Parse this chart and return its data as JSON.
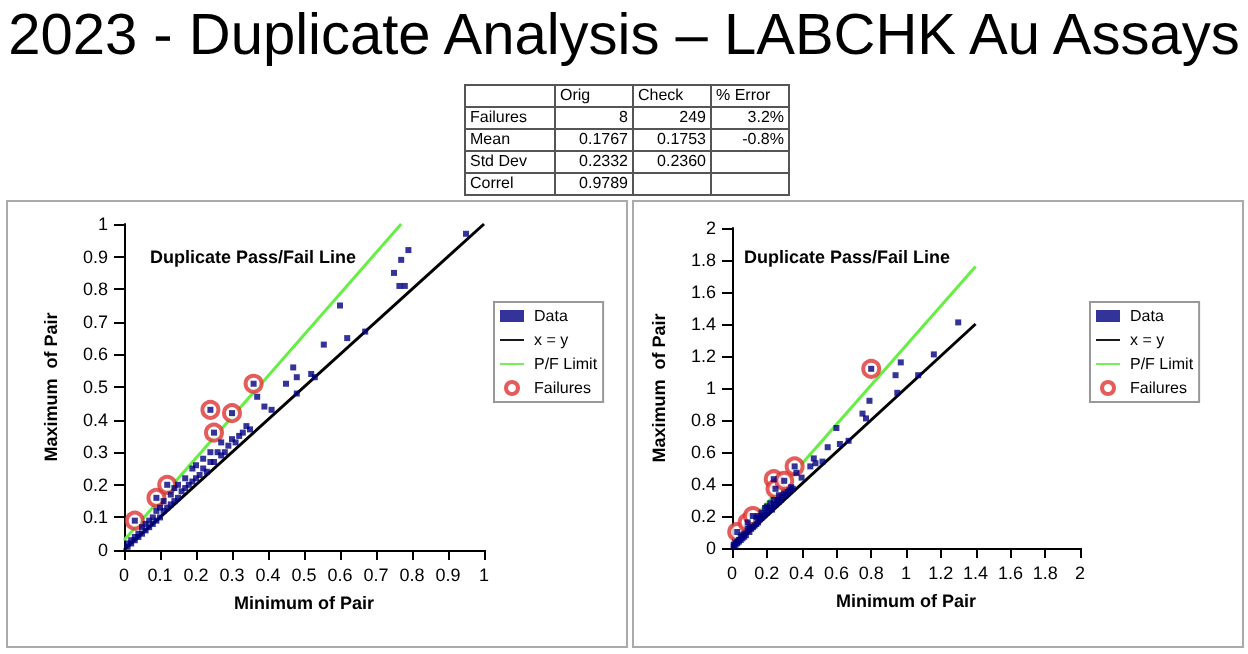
{
  "chart_data": [
    {
      "type": "other",
      "title": "2023 - Duplicate Analysis – LABCHK Au Assays",
      "annotations": [
        null,
        "Orig",
        "Check",
        "% Error",
        "Failures",
        "8",
        "249",
        "3.2%",
        "Mean",
        "0.1767",
        "0.1753",
        "-0.8%",
        "Std Dev",
        "0.2332",
        "0.2360",
        null,
        "Correl",
        "0.9789",
        null,
        null
      ]
    },
    {
      "type": "scatter",
      "title": "Duplicate Pass/Fail Line",
      "xlabel": "Minimum of Pair",
      "ylabel": "Maximum  of Pair",
      "xlim": [
        0,
        1
      ],
      "ylim": [
        0,
        1
      ],
      "xticks": [
        0,
        0.1,
        0.2,
        0.3,
        0.4,
        0.5,
        0.6,
        0.7,
        0.8,
        0.9,
        1
      ],
      "yticks": [
        0,
        0.1,
        0.2,
        0.3,
        0.4,
        0.5,
        0.6,
        0.7,
        0.8,
        0.9,
        1
      ],
      "grid": false,
      "legend": "right",
      "series": [
        {
          "name": "Data",
          "type": "scatter",
          "marker": "square",
          "color": "#000080",
          "x": [
            0.01,
            0.01,
            0.02,
            0.02,
            0.03,
            0.03,
            0.04,
            0.04,
            0.05,
            0.05,
            0.06,
            0.06,
            0.07,
            0.07,
            0.08,
            0.08,
            0.09,
            0.09,
            0.1,
            0.1,
            0.11,
            0.11,
            0.12,
            0.13,
            0.13,
            0.14,
            0.14,
            0.15,
            0.15,
            0.16,
            0.17,
            0.17,
            0.18,
            0.19,
            0.19,
            0.2,
            0.2,
            0.21,
            0.22,
            0.22,
            0.23,
            0.24,
            0.24,
            0.25,
            0.26,
            0.27,
            0.27,
            0.28,
            0.29,
            0.3,
            0.31,
            0.32,
            0.33,
            0.34,
            0.35,
            0.37,
            0.39,
            0.41,
            0.45,
            0.47,
            0.48,
            0.48,
            0.52,
            0.53,
            0.555,
            0.6,
            0.62,
            0.67,
            0.75,
            0.765,
            0.78,
            0.77,
            0.79,
            0.95,
            0.03,
            0.09,
            0.12,
            0.24,
            0.25,
            0.3,
            0.36
          ],
          "values": [
            0.01,
            0.02,
            0.02,
            0.03,
            0.03,
            0.04,
            0.04,
            0.05,
            0.05,
            0.07,
            0.06,
            0.08,
            0.07,
            0.09,
            0.08,
            0.1,
            0.09,
            0.12,
            0.1,
            0.13,
            0.12,
            0.15,
            0.13,
            0.14,
            0.17,
            0.15,
            0.19,
            0.16,
            0.2,
            0.18,
            0.19,
            0.22,
            0.2,
            0.21,
            0.25,
            0.22,
            0.26,
            0.23,
            0.25,
            0.28,
            0.24,
            0.27,
            0.3,
            0.27,
            0.3,
            0.29,
            0.33,
            0.3,
            0.32,
            0.34,
            0.33,
            0.35,
            0.36,
            0.38,
            0.37,
            0.47,
            0.44,
            0.43,
            0.51,
            0.56,
            0.53,
            0.48,
            0.54,
            0.53,
            0.63,
            0.75,
            0.65,
            0.67,
            0.85,
            0.81,
            0.81,
            0.89,
            0.92,
            0.97,
            0.09,
            0.16,
            0.2,
            0.43,
            0.36,
            0.42,
            0.51
          ]
        },
        {
          "name": "x = y",
          "type": "line",
          "marker": "none",
          "color": "#000000",
          "x": [
            0,
            1
          ],
          "values": [
            0,
            1
          ]
        },
        {
          "name": "P/F Limit",
          "type": "line",
          "marker": "none",
          "color": "#66ee44",
          "x": [
            0,
            0.77
          ],
          "values": [
            0.03,
            1
          ]
        },
        {
          "name": "Failures",
          "type": "scatter",
          "marker": "circle",
          "color": "#dd3333",
          "x": [
            0.03,
            0.09,
            0.12,
            0.24,
            0.25,
            0.3,
            0.36
          ],
          "values": [
            0.09,
            0.16,
            0.2,
            0.43,
            0.36,
            0.42,
            0.51
          ]
        }
      ]
    },
    {
      "type": "scatter",
      "title": "Duplicate Pass/Fail Line",
      "xlabel": "Minimum of Pair",
      "ylabel": "Maximum  of Pair",
      "xlim": [
        0,
        2
      ],
      "ylim": [
        0,
        2
      ],
      "xticks": [
        0,
        0.2,
        0.4,
        0.6,
        0.8,
        1,
        1.2,
        1.4,
        1.6,
        1.8,
        2
      ],
      "yticks": [
        0,
        0.2,
        0.4,
        0.6,
        0.8,
        1,
        1.2,
        1.4,
        1.6,
        1.8,
        2
      ],
      "grid": false,
      "legend": "right",
      "series": [
        {
          "name": "Data",
          "type": "scatter",
          "marker": "square",
          "color": "#000080",
          "x": [
            0.01,
            0.01,
            0.02,
            0.02,
            0.03,
            0.03,
            0.04,
            0.04,
            0.05,
            0.05,
            0.06,
            0.06,
            0.07,
            0.07,
            0.08,
            0.09,
            0.1,
            0.1,
            0.11,
            0.12,
            0.13,
            0.14,
            0.14,
            0.15,
            0.15,
            0.16,
            0.17,
            0.17,
            0.18,
            0.19,
            0.19,
            0.2,
            0.2,
            0.21,
            0.22,
            0.22,
            0.23,
            0.24,
            0.24,
            0.25,
            0.26,
            0.27,
            0.27,
            0.28,
            0.29,
            0.3,
            0.31,
            0.32,
            0.33,
            0.34,
            0.35,
            0.37,
            0.4,
            0.45,
            0.47,
            0.48,
            0.52,
            0.55,
            0.6,
            0.62,
            0.67,
            0.75,
            0.77,
            0.79,
            0.95,
            0.03,
            0.09,
            0.12,
            0.24,
            0.25,
            0.3,
            0.36,
            0.8,
            0.94,
            0.97,
            1.07,
            1.16,
            1.3
          ],
          "values": [
            0.01,
            0.02,
            0.02,
            0.03,
            0.03,
            0.04,
            0.04,
            0.05,
            0.05,
            0.07,
            0.06,
            0.08,
            0.07,
            0.09,
            0.08,
            0.12,
            0.1,
            0.13,
            0.12,
            0.13,
            0.14,
            0.15,
            0.19,
            0.16,
            0.2,
            0.18,
            0.19,
            0.22,
            0.2,
            0.21,
            0.25,
            0.22,
            0.26,
            0.23,
            0.25,
            0.28,
            0.24,
            0.27,
            0.3,
            0.27,
            0.3,
            0.29,
            0.33,
            0.3,
            0.32,
            0.34,
            0.33,
            0.35,
            0.36,
            0.38,
            0.37,
            0.47,
            0.44,
            0.51,
            0.56,
            0.53,
            0.54,
            0.63,
            0.75,
            0.65,
            0.67,
            0.84,
            0.81,
            0.92,
            0.97,
            0.1,
            0.16,
            0.2,
            0.43,
            0.37,
            0.42,
            0.51,
            1.12,
            1.08,
            1.16,
            1.08,
            1.21,
            1.41
          ]
        },
        {
          "name": "x = y",
          "type": "line",
          "marker": "none",
          "color": "#000000",
          "x": [
            0,
            1.4
          ],
          "values": [
            0,
            1.4
          ]
        },
        {
          "name": "P/F Limit",
          "type": "line",
          "marker": "none",
          "color": "#66ee44",
          "x": [
            0,
            1.4
          ],
          "values": [
            0.03,
            1.76
          ]
        },
        {
          "name": "Failures",
          "type": "scatter",
          "marker": "circle",
          "color": "#dd3333",
          "x": [
            0.03,
            0.09,
            0.12,
            0.24,
            0.25,
            0.3,
            0.36,
            0.8
          ],
          "values": [
            0.1,
            0.16,
            0.2,
            0.43,
            0.37,
            0.42,
            0.51,
            1.12
          ]
        }
      ]
    }
  ]
}
